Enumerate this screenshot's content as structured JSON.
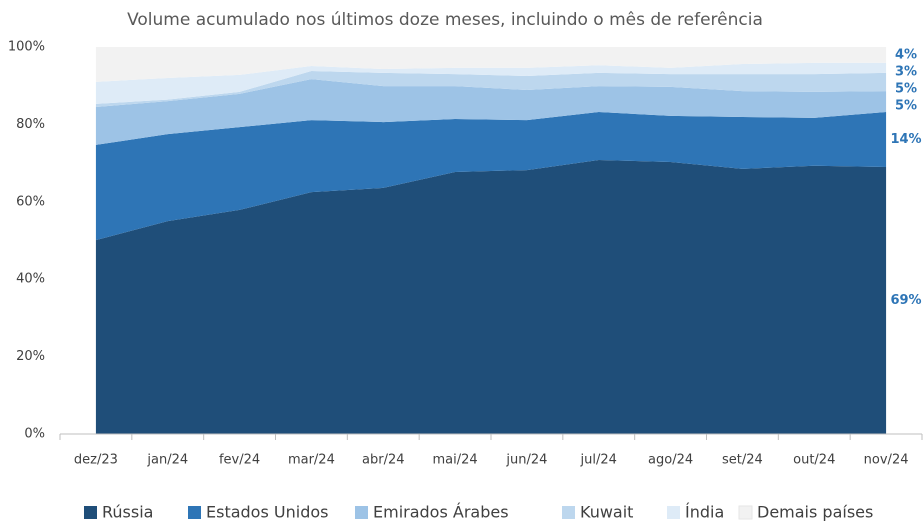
{
  "chart_data": {
    "type": "area",
    "stacked": true,
    "title": "Volume acumulado nos últimos doze meses, incluindo o mês de referência",
    "categories": [
      "dez/23",
      "jan/24",
      "fev/24",
      "mar/24",
      "abr/24",
      "mai/24",
      "jun/24",
      "jul/24",
      "ago/24",
      "set/24",
      "out/24",
      "nov/24"
    ],
    "ylim": [
      0,
      100
    ],
    "yticks": [
      {
        "value": 0,
        "label": "0%"
      },
      {
        "value": 20,
        "label": "20%"
      },
      {
        "value": 40,
        "label": "40%"
      },
      {
        "value": 60,
        "label": "60%"
      },
      {
        "value": 80,
        "label": "80%"
      },
      {
        "value": 100,
        "label": "100%"
      }
    ],
    "grid": false,
    "legend": "bottom",
    "series": [
      {
        "name": "Rússia",
        "color": "#1f4e79",
        "values": [
          50.1,
          55,
          57.9,
          62.5,
          63.6,
          67.7,
          68.2,
          70.8,
          70.3,
          68.5,
          69.3,
          69
        ],
        "value_labels": [
          null,
          null,
          null,
          null,
          null,
          null,
          null,
          null,
          null,
          null,
          null,
          "69%"
        ]
      },
      {
        "name": "Estados Unidos",
        "color": "#2e75b6",
        "values": [
          24.6,
          22.5,
          21.4,
          18.6,
          17,
          13.7,
          12.9,
          12.4,
          11.9,
          13.4,
          12.4,
          14.2
        ],
        "value_labels": [
          null,
          null,
          null,
          null,
          null,
          null,
          null,
          null,
          null,
          null,
          null,
          "14%"
        ]
      },
      {
        "name": "Emirados Árabes",
        "color": "#9dc3e6",
        "values": [
          9.8,
          8.5,
          8.6,
          10.6,
          9.3,
          8.5,
          7.8,
          6.7,
          7.5,
          6.7,
          6.7,
          5.4
        ],
        "value_labels": [
          null,
          null,
          null,
          null,
          null,
          null,
          null,
          null,
          null,
          null,
          null,
          "5%"
        ]
      },
      {
        "name": "Kuwait",
        "color": "#bdd7ee",
        "values": [
          0.8,
          0.4,
          0.5,
          2.1,
          3.4,
          3.1,
          3.6,
          3.4,
          3.3,
          4.4,
          4.6,
          4.7
        ],
        "value_labels": [
          null,
          null,
          null,
          null,
          null,
          null,
          null,
          null,
          null,
          null,
          null,
          "5%"
        ]
      },
      {
        "name": "Índia",
        "color": "#deebf7",
        "values": [
          5.7,
          5.6,
          4.4,
          1.3,
          1,
          1.6,
          2.1,
          2,
          1.6,
          2.6,
          2.9,
          2.6
        ],
        "value_labels": [
          null,
          null,
          null,
          null,
          null,
          null,
          null,
          null,
          null,
          null,
          null,
          "3%"
        ]
      },
      {
        "name": "Demais países",
        "color": "#f2f2f2",
        "values": [
          9,
          8,
          7.2,
          4.9,
          5.7,
          5.4,
          5.4,
          4.7,
          5.4,
          4.4,
          4.1,
          4.1
        ],
        "value_labels": [
          null,
          null,
          null,
          null,
          null,
          null,
          null,
          null,
          null,
          null,
          null,
          "4%"
        ]
      }
    ]
  }
}
